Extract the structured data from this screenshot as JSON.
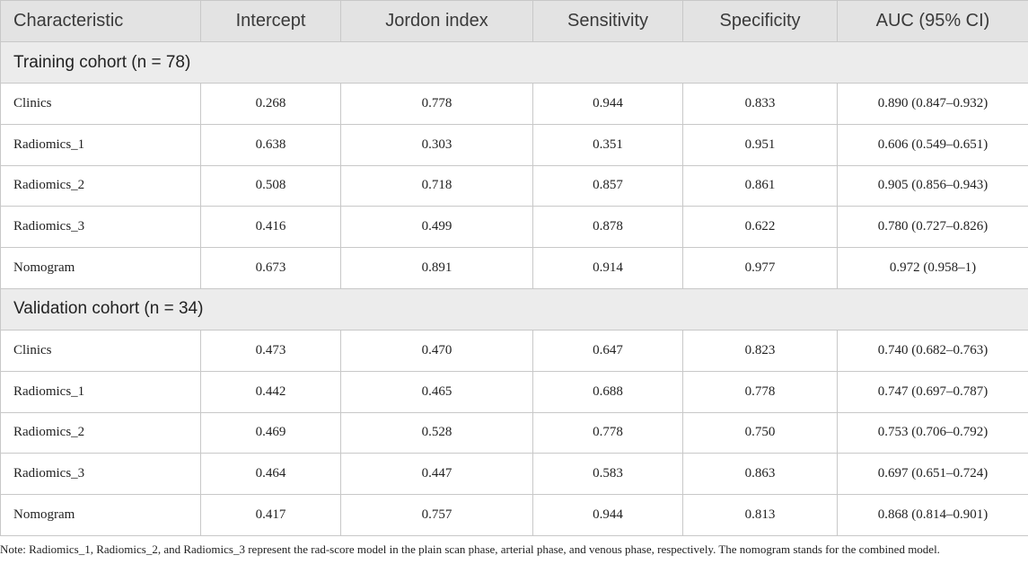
{
  "table": {
    "headers": [
      "Characteristic",
      "Intercept",
      "Jordon index",
      "Sensitivity",
      "Specificity",
      "AUC (95% CI)"
    ],
    "sections": [
      {
        "title": "Training cohort (n = 78)",
        "rows": [
          [
            "Clinics",
            "0.268",
            "0.778",
            "0.944",
            "0.833",
            "0.890 (0.847–0.932)"
          ],
          [
            "Radiomics_1",
            "0.638",
            "0.303",
            "0.351",
            "0.951",
            "0.606 (0.549–0.651)"
          ],
          [
            "Radiomics_2",
            "0.508",
            "0.718",
            "0.857",
            "0.861",
            "0.905 (0.856–0.943)"
          ],
          [
            "Radiomics_3",
            "0.416",
            "0.499",
            "0.878",
            "0.622",
            "0.780 (0.727–0.826)"
          ],
          [
            "Nomogram",
            "0.673",
            "0.891",
            "0.914",
            "0.977",
            "0.972 (0.958–1)"
          ]
        ]
      },
      {
        "title": "Validation cohort (n = 34)",
        "rows": [
          [
            "Clinics",
            "0.473",
            "0.470",
            "0.647",
            "0.823",
            "0.740 (0.682–0.763)"
          ],
          [
            "Radiomics_1",
            "0.442",
            "0.465",
            "0.688",
            "0.778",
            "0.747 (0.697–0.787)"
          ],
          [
            "Radiomics_2",
            "0.469",
            "0.528",
            "0.778",
            "0.750",
            "0.753 (0.706–0.792)"
          ],
          [
            "Radiomics_3",
            "0.464",
            "0.447",
            "0.583",
            "0.863",
            "0.697 (0.651–0.724)"
          ],
          [
            "Nomogram",
            "0.417",
            "0.757",
            "0.944",
            "0.813",
            "0.868 (0.814–0.901)"
          ]
        ]
      }
    ]
  },
  "note": "Note: Radiomics_1, Radiomics_2, and Radiomics_3 represent the rad-score model in the plain scan phase, arterial phase, and venous phase, respectively. The nomogram stands for the combined model."
}
